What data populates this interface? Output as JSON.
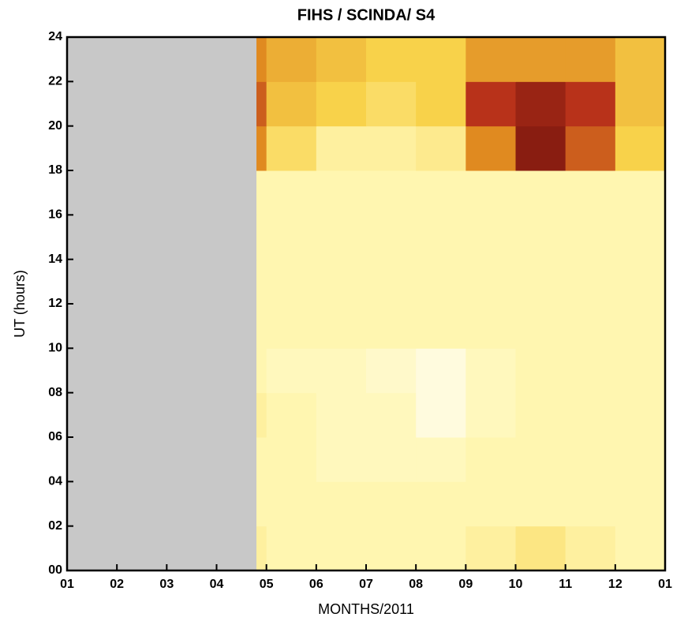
{
  "chart_data": {
    "type": "heatmap",
    "title": "FIHS / SCINDA/ S4",
    "xlabel": "MONTHS/2011",
    "ylabel": "UT (hours)",
    "xbins": [
      1,
      4.8,
      5,
      6,
      7,
      8,
      9,
      10,
      11,
      12,
      13
    ],
    "ybins": [
      0,
      2,
      4,
      6,
      8,
      10,
      12,
      14,
      16,
      18,
      20,
      22,
      24
    ],
    "values": [
      [
        null,
        0.15,
        0.12,
        0.12,
        0.12,
        0.12,
        0.15,
        0.2,
        0.15,
        0.12
      ],
      [
        null,
        0.12,
        0.12,
        0.12,
        0.12,
        0.12,
        0.12,
        0.12,
        0.12,
        0.12
      ],
      [
        null,
        0.12,
        0.12,
        0.1,
        0.1,
        0.1,
        0.12,
        0.12,
        0.12,
        0.12
      ],
      [
        null,
        0.15,
        0.12,
        0.1,
        0.1,
        0.05,
        0.1,
        0.12,
        0.12,
        0.12
      ],
      [
        null,
        0.12,
        0.1,
        0.1,
        0.08,
        0.05,
        0.1,
        0.12,
        0.12,
        0.12
      ],
      [
        null,
        0.12,
        0.12,
        0.12,
        0.12,
        0.12,
        0.12,
        0.12,
        0.12,
        0.12
      ],
      [
        null,
        0.12,
        0.12,
        0.12,
        0.12,
        0.12,
        0.12,
        0.12,
        0.12,
        0.12
      ],
      [
        null,
        0.12,
        0.12,
        0.12,
        0.12,
        0.12,
        0.12,
        0.12,
        0.12,
        0.12
      ],
      [
        null,
        0.12,
        0.12,
        0.12,
        0.12,
        0.12,
        0.12,
        0.12,
        0.12,
        0.12
      ],
      [
        null,
        0.5,
        0.25,
        0.15,
        0.15,
        0.18,
        0.5,
        0.85,
        0.6,
        0.3
      ],
      [
        null,
        0.6,
        0.35,
        0.3,
        0.25,
        0.3,
        0.7,
        0.8,
        0.7,
        0.35
      ],
      [
        null,
        0.5,
        0.4,
        0.35,
        0.3,
        0.3,
        0.45,
        0.45,
        0.45,
        0.35
      ]
    ],
    "colorscale": [
      {
        "value": 0,
        "color": "#ffffff"
      },
      {
        "value": 0.12,
        "color": "#fff6b0"
      },
      {
        "value": 0.3,
        "color": "#f8d24a"
      },
      {
        "value": 0.5,
        "color": "#e08a20"
      },
      {
        "value": 0.7,
        "color": "#b8321a"
      },
      {
        "value": 1,
        "color": "#5a0808"
      }
    ],
    "nodata_color": "#c8c8c8",
    "xlim": [
      1,
      13
    ],
    "ylim": [
      0,
      24
    ],
    "xticks": [
      {
        "value": 1,
        "label": "01"
      },
      {
        "value": 2,
        "label": "02"
      },
      {
        "value": 3,
        "label": "03"
      },
      {
        "value": 4,
        "label": "04"
      },
      {
        "value": 5,
        "label": "05"
      },
      {
        "value": 6,
        "label": "06"
      },
      {
        "value": 7,
        "label": "07"
      },
      {
        "value": 8,
        "label": "08"
      },
      {
        "value": 9,
        "label": "09"
      },
      {
        "value": 10,
        "label": "10"
      },
      {
        "value": 11,
        "label": "11"
      },
      {
        "value": 12,
        "label": "12"
      },
      {
        "value": 13,
        "label": "01"
      }
    ],
    "yticks": [
      {
        "value": 0,
        "label": "00"
      },
      {
        "value": 2,
        "label": "02"
      },
      {
        "value": 4,
        "label": "04"
      },
      {
        "value": 6,
        "label": "06"
      },
      {
        "value": 8,
        "label": "08"
      },
      {
        "value": 10,
        "label": "10"
      },
      {
        "value": 12,
        "label": "12"
      },
      {
        "value": 14,
        "label": "14"
      },
      {
        "value": 16,
        "label": "16"
      },
      {
        "value": 18,
        "label": "18"
      },
      {
        "value": 20,
        "label": "20"
      },
      {
        "value": 22,
        "label": "22"
      },
      {
        "value": 24,
        "label": "24"
      }
    ]
  }
}
